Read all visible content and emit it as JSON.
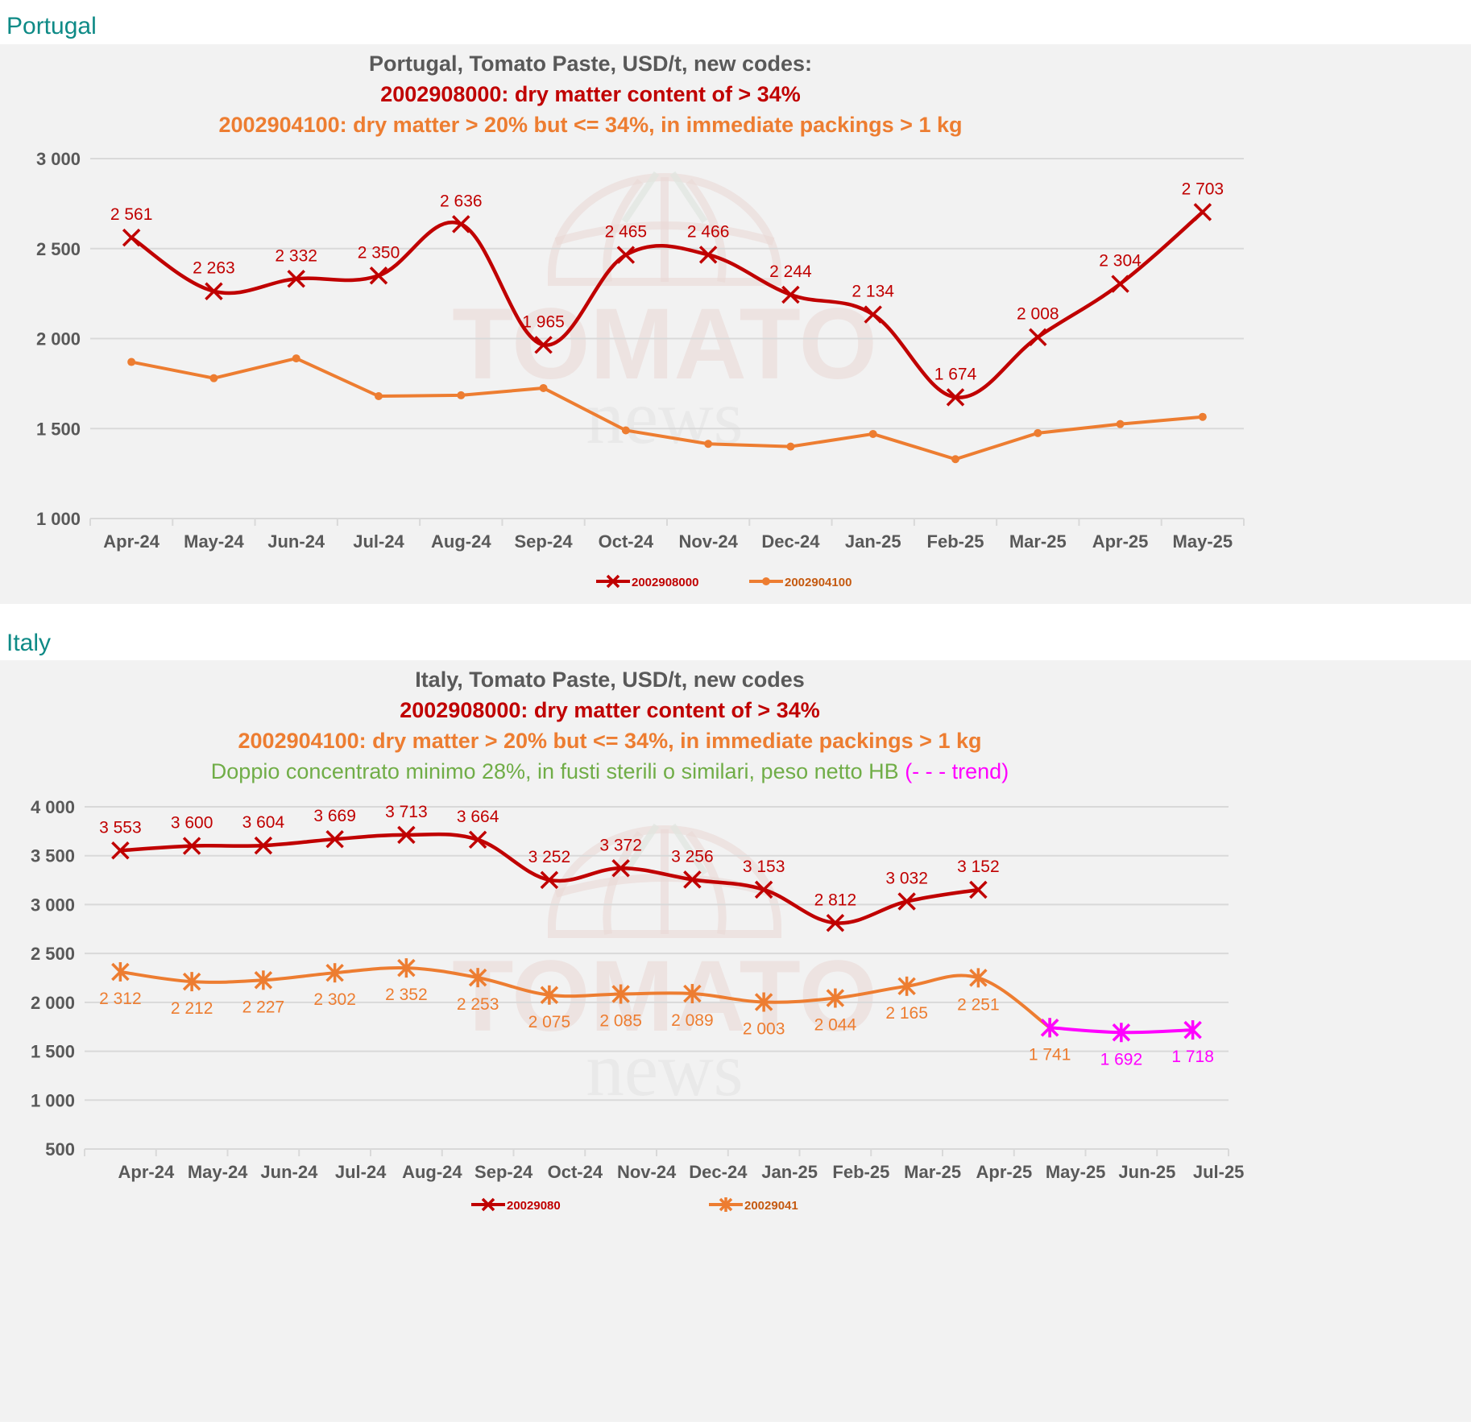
{
  "colors": {
    "section": "#0e8a86",
    "panel_bg": "#f2f2f2",
    "gray_title": "#595959",
    "red": "#c00000",
    "orange": "#ed7d31",
    "green": "#70ad47",
    "magenta": "#ff00ff",
    "grid": "#d9d9d9"
  },
  "watermark": {
    "word1": "TOMATO",
    "word2": "news"
  },
  "portugal": {
    "section_label": "Portugal",
    "title_lines": [
      {
        "text": "Portugal, Tomato Paste, USD/t, new codes:",
        "color": "#595959"
      },
      {
        "text": "2002908000: dry matter content of > 34%",
        "color": "#c00000"
      },
      {
        "text": "2002904100:  dry matter > 20% but <= 34%, in immediate packings  > 1 kg",
        "color": "#ed7d31"
      }
    ]
  },
  "italy": {
    "section_label": "Italy",
    "title_lines": [
      {
        "text": "Italy, Tomato Paste, USD/t, new codes",
        "color": "#595959"
      },
      {
        "text": "2002908000: dry matter content of > 34%",
        "color": "#c00000"
      },
      {
        "text": "2002904100:  dry matter > 20% but <= 34%, in immediate packings  > 1 kg",
        "color": "#ed7d31"
      }
    ],
    "subtitle_green": "Doppio concentrato minimo 28%, in fusti sterili o similari, peso netto HB ",
    "subtitle_trend": "(- - - trend)"
  },
  "chart_data": [
    {
      "type": "line",
      "title": "Portugal, Tomato Paste, USD/t, new codes",
      "xlabel": "",
      "ylabel": "USD/t",
      "ylim": [
        1000,
        3000
      ],
      "yticks": [
        1000,
        1500,
        2000,
        2500,
        3000
      ],
      "ytick_labels": [
        "1 000",
        "1 500",
        "2 000",
        "2 500",
        "3 000"
      ],
      "grid": true,
      "legend_position": "bottom",
      "categories": [
        "Apr-24",
        "May-24",
        "Jun-24",
        "Jul-24",
        "Aug-24",
        "Sep-24",
        "Oct-24",
        "Nov-24",
        "Dec-24",
        "Jan-25",
        "Feb-25",
        "Mar-25",
        "Apr-25",
        "May-25"
      ],
      "series": [
        {
          "name": "2002908000",
          "color": "#c00000",
          "marker": "x",
          "smooth": true,
          "values": [
            2561,
            2263,
            2332,
            2350,
            2636,
            1965,
            2465,
            2466,
            2244,
            2134,
            1674,
            2008,
            2304,
            2703
          ],
          "labels": [
            "2 561",
            "2 263",
            "2 332",
            "2 350",
            "2 636",
            "1 965",
            "2 465",
            "2 466",
            "2 244",
            "2 134",
            "1 674",
            "2 008",
            "2 304",
            "2 703"
          ]
        },
        {
          "name": "2002904100",
          "color": "#ed7d31",
          "marker": "circle",
          "smooth": false,
          "values": [
            1870,
            1780,
            1890,
            1680,
            1685,
            1725,
            1490,
            1415,
            1400,
            1470,
            1330,
            1475,
            1525,
            1565
          ],
          "labels": []
        }
      ]
    },
    {
      "type": "line",
      "title": "Italy, Tomato Paste, USD/t, new codes",
      "xlabel": "",
      "ylabel": "USD/t",
      "ylim": [
        500,
        4000
      ],
      "yticks": [
        500,
        1000,
        1500,
        2000,
        2500,
        3000,
        3500,
        4000
      ],
      "ytick_labels": [
        "500",
        "1 000",
        "1 500",
        "2 000",
        "2 500",
        "3 000",
        "3 500",
        "4 000"
      ],
      "grid": true,
      "legend_position": "bottom",
      "categories": [
        "Apr-24",
        "May-24",
        "Jun-24",
        "Jul-24",
        "Aug-24",
        "Sep-24",
        "Oct-24",
        "Nov-24",
        "Dec-24",
        "Jan-25",
        "Feb-25",
        "Mar-25",
        "Apr-25",
        "May-25",
        "Jun-25",
        "Jul-25"
      ],
      "series": [
        {
          "name": "20029080",
          "color": "#c00000",
          "marker": "x",
          "smooth": true,
          "start_index": 0,
          "values": [
            3553,
            3600,
            3604,
            3669,
            3713,
            3664,
            3252,
            3372,
            3256,
            3153,
            2812,
            3032,
            3152
          ],
          "labels": [
            "3 553",
            "3 600",
            "3 604",
            "3 669",
            "3 713",
            "3 664",
            "3 252",
            "3 372",
            "3 256",
            "3 153",
            "2 812",
            "3 032",
            "3 152"
          ],
          "label_position": "above"
        },
        {
          "name": "20029041",
          "color": "#ed7d31",
          "marker": "asterisk",
          "smooth": true,
          "start_index": 0,
          "values": [
            2312,
            2212,
            2227,
            2302,
            2352,
            2253,
            2075,
            2085,
            2089,
            2003,
            2044,
            2165,
            2251,
            1741
          ],
          "labels": [
            "2 312",
            "2 212",
            "2 227",
            "2 302",
            "2 352",
            "2 253",
            "2 075",
            "2 085",
            "2 089",
            "2 003",
            "2 044",
            "2 165",
            "2 251",
            "1 741"
          ],
          "label_position": "below"
        },
        {
          "name": "trend",
          "color": "#ff00ff",
          "marker": "asterisk",
          "smooth": true,
          "start_index": 13,
          "values": [
            1741,
            1692,
            1718
          ],
          "labels": [
            "",
            "1 692",
            "1 718"
          ],
          "label_position": "below",
          "in_legend": false
        }
      ]
    }
  ]
}
